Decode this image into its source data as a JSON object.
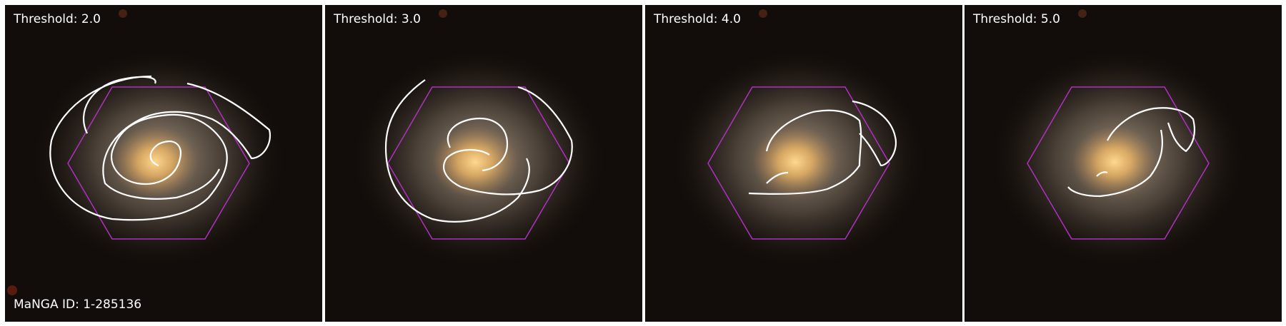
{
  "panels": [
    {
      "threshold_label": "Threshold: 2.0"
    },
    {
      "threshold_label": "Threshold: 3.0"
    },
    {
      "threshold_label": "Threshold: 4.0"
    },
    {
      "threshold_label": "Threshold: 5.0"
    }
  ],
  "manga_id_label": "MaNGA ID: 1-285136",
  "colors": {
    "background": "#120d0a",
    "contour": "#ffffff",
    "hexagon": "#b030c0",
    "bulge": "#e6b060"
  }
}
